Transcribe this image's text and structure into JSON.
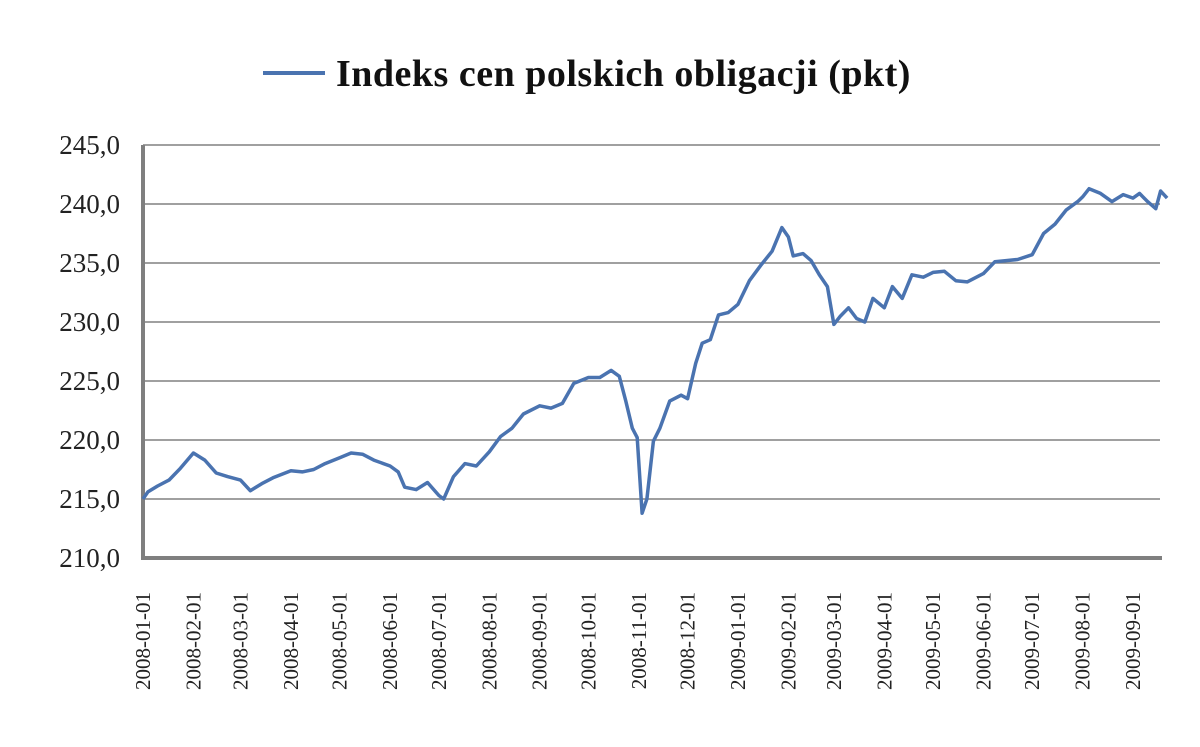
{
  "chart_data": {
    "type": "line",
    "title": "",
    "xlabel": "",
    "ylabel": "",
    "ylim": [
      210,
      245
    ],
    "y_ticks": [
      210,
      215,
      220,
      225,
      230,
      235,
      240,
      245
    ],
    "y_tick_labels": [
      "210,0",
      "215,0",
      "220,0",
      "225,0",
      "230,0",
      "235,0",
      "240,0",
      "245,0"
    ],
    "x_tick_labels": [
      "2008-01-01",
      "2008-02-01",
      "2008-03-01",
      "2008-04-01",
      "2008-05-01",
      "2008-06-01",
      "2008-07-01",
      "2008-08-01",
      "2008-09-01",
      "2008-10-01",
      "2008-11-01",
      "2008-12-01",
      "2009-01-01",
      "2009-02-01",
      "2009-03-01",
      "2009-04-01",
      "2009-05-01",
      "2009-06-01",
      "2009-07-01",
      "2009-08-01",
      "2009-09-01"
    ],
    "grid": true,
    "legend_position": "top",
    "series": [
      {
        "name": "Indeks cen polskich obligacji (pkt)",
        "color": "#4a73b0",
        "points": [
          [
            "2008-01-01",
            215.0
          ],
          [
            "2008-01-04",
            215.6
          ],
          [
            "2008-01-10",
            216.1
          ],
          [
            "2008-01-17",
            216.6
          ],
          [
            "2008-01-24",
            217.6
          ],
          [
            "2008-02-01",
            218.9
          ],
          [
            "2008-02-08",
            218.3
          ],
          [
            "2008-02-15",
            217.2
          ],
          [
            "2008-02-22",
            216.9
          ],
          [
            "2008-03-01",
            216.6
          ],
          [
            "2008-03-07",
            215.7
          ],
          [
            "2008-03-14",
            216.3
          ],
          [
            "2008-03-21",
            216.8
          ],
          [
            "2008-04-01",
            217.4
          ],
          [
            "2008-04-08",
            217.3
          ],
          [
            "2008-04-15",
            217.5
          ],
          [
            "2008-04-22",
            218.0
          ],
          [
            "2008-05-01",
            218.5
          ],
          [
            "2008-05-08",
            218.9
          ],
          [
            "2008-05-15",
            218.8
          ],
          [
            "2008-05-22",
            218.3
          ],
          [
            "2008-06-01",
            217.8
          ],
          [
            "2008-06-06",
            217.3
          ],
          [
            "2008-06-10",
            216.0
          ],
          [
            "2008-06-17",
            215.8
          ],
          [
            "2008-06-24",
            216.4
          ],
          [
            "2008-07-01",
            215.3
          ],
          [
            "2008-07-04",
            215.0
          ],
          [
            "2008-07-10",
            216.9
          ],
          [
            "2008-07-17",
            218.0
          ],
          [
            "2008-07-24",
            217.8
          ],
          [
            "2008-08-01",
            219.0
          ],
          [
            "2008-08-08",
            220.3
          ],
          [
            "2008-08-15",
            221.0
          ],
          [
            "2008-08-22",
            222.2
          ],
          [
            "2008-09-01",
            222.9
          ],
          [
            "2008-09-08",
            222.7
          ],
          [
            "2008-09-15",
            223.1
          ],
          [
            "2008-09-22",
            224.8
          ],
          [
            "2008-10-01",
            225.3
          ],
          [
            "2008-10-08",
            225.3
          ],
          [
            "2008-10-15",
            225.9
          ],
          [
            "2008-10-20",
            225.4
          ],
          [
            "2008-10-24",
            223.3
          ],
          [
            "2008-10-28",
            221.0
          ],
          [
            "2008-10-31",
            220.2
          ],
          [
            "2008-11-03",
            213.8
          ],
          [
            "2008-11-06",
            215.0
          ],
          [
            "2008-11-10",
            219.9
          ],
          [
            "2008-11-14",
            221.0
          ],
          [
            "2008-11-20",
            223.3
          ],
          [
            "2008-11-27",
            223.8
          ],
          [
            "2008-12-01",
            223.5
          ],
          [
            "2008-12-06",
            226.5
          ],
          [
            "2008-12-10",
            228.2
          ],
          [
            "2008-12-15",
            228.5
          ],
          [
            "2008-12-20",
            230.6
          ],
          [
            "2008-12-26",
            230.8
          ],
          [
            "2009-01-01",
            231.5
          ],
          [
            "2009-01-08",
            233.5
          ],
          [
            "2009-01-15",
            234.8
          ],
          [
            "2009-01-22",
            236.0
          ],
          [
            "2009-01-28",
            238.0
          ],
          [
            "2009-02-01",
            237.2
          ],
          [
            "2009-02-04",
            235.6
          ],
          [
            "2009-02-10",
            235.8
          ],
          [
            "2009-02-15",
            235.2
          ],
          [
            "2009-02-20",
            234.0
          ],
          [
            "2009-02-25",
            233.0
          ],
          [
            "2009-03-01",
            229.8
          ],
          [
            "2009-03-05",
            230.5
          ],
          [
            "2009-03-10",
            231.2
          ],
          [
            "2009-03-15",
            230.3
          ],
          [
            "2009-03-20",
            230.0
          ],
          [
            "2009-03-25",
            232.0
          ],
          [
            "2009-04-01",
            231.2
          ],
          [
            "2009-04-06",
            233.0
          ],
          [
            "2009-04-12",
            232.0
          ],
          [
            "2009-04-18",
            234.0
          ],
          [
            "2009-04-25",
            233.8
          ],
          [
            "2009-05-01",
            234.2
          ],
          [
            "2009-05-08",
            234.3
          ],
          [
            "2009-05-15",
            233.5
          ],
          [
            "2009-05-22",
            233.4
          ],
          [
            "2009-06-01",
            234.1
          ],
          [
            "2009-06-08",
            235.1
          ],
          [
            "2009-06-15",
            235.2
          ],
          [
            "2009-06-22",
            235.3
          ],
          [
            "2009-07-01",
            235.7
          ],
          [
            "2009-07-08",
            237.5
          ],
          [
            "2009-07-15",
            238.3
          ],
          [
            "2009-07-22",
            239.5
          ],
          [
            "2009-07-29",
            240.2
          ],
          [
            "2009-08-01",
            240.6
          ],
          [
            "2009-08-05",
            241.3
          ],
          [
            "2009-08-12",
            240.9
          ],
          [
            "2009-08-19",
            240.2
          ],
          [
            "2009-08-26",
            240.8
          ],
          [
            "2009-09-01",
            240.5
          ],
          [
            "2009-09-05",
            240.9
          ],
          [
            "2009-09-10",
            240.2
          ],
          [
            "2009-09-15",
            239.6
          ],
          [
            "2009-09-18",
            241.1
          ],
          [
            "2009-09-22",
            240.5
          ]
        ]
      }
    ]
  }
}
